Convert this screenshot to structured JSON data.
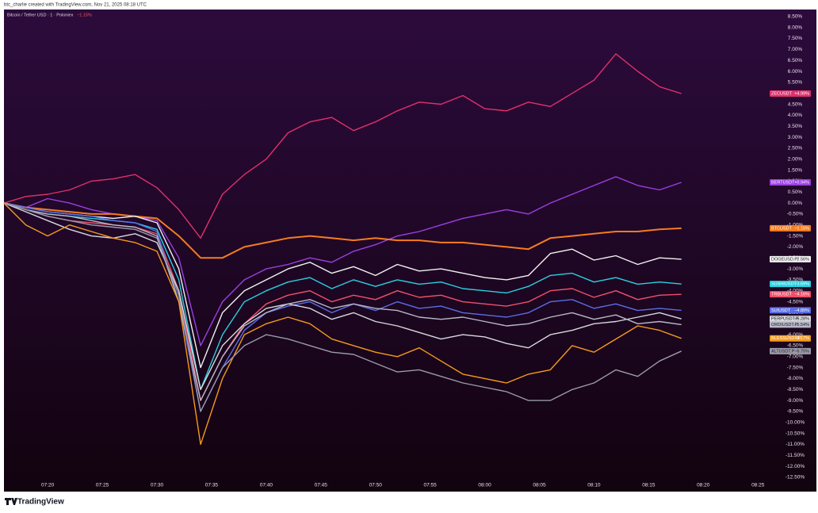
{
  "chart_data": {
    "type": "line",
    "author": "btc_charlie created with TradingView.com, Nov 21, 2025 08:18 UTC",
    "title": "Bitcoin / Tether USD · 1 · Poloniex",
    "title_change": "−1.15%",
    "brand": "TradingView",
    "x": [
      "07:16",
      "07:18",
      "07:20",
      "07:22",
      "07:24",
      "07:26",
      "07:28",
      "07:30",
      "07:32",
      "07:34",
      "07:36",
      "07:38",
      "07:40",
      "07:42",
      "07:44",
      "07:46",
      "07:48",
      "07:50",
      "07:52",
      "07:54",
      "07:56",
      "07:58",
      "08:00",
      "08:02",
      "08:04",
      "08:06",
      "08:08",
      "08:10",
      "08:12",
      "08:14",
      "08:16",
      "08:18"
    ],
    "xlim": [
      "07:16",
      "08:26"
    ],
    "xticks": [
      "07:20",
      "07:25",
      "07:30",
      "07:35",
      "07:40",
      "07:45",
      "07:50",
      "07:55",
      "08:00",
      "08:05",
      "08:10",
      "08:15",
      "08:20",
      "08:25"
    ],
    "ylim": [
      -13.08,
      8.82
    ],
    "yticks": [
      {
        "value": 8.5,
        "label": "8.50%"
      },
      {
        "value": 8,
        "label": "8.00%"
      },
      {
        "value": 7.5,
        "label": "7.50%"
      },
      {
        "value": 7,
        "label": "7.00%"
      },
      {
        "value": 6.5,
        "label": "6.50%"
      },
      {
        "value": 6,
        "label": "6.00%"
      },
      {
        "value": 5.5,
        "label": "5.50%"
      },
      {
        "value": 5,
        "label": "5.00%"
      },
      {
        "value": 4.5,
        "label": "4.50%"
      },
      {
        "value": 4,
        "label": "4.00%"
      },
      {
        "value": 3.5,
        "label": "3.50%"
      },
      {
        "value": 3,
        "label": "3.00%"
      },
      {
        "value": 2.5,
        "label": "2.50%"
      },
      {
        "value": 2,
        "label": "2.00%"
      },
      {
        "value": 1.5,
        "label": "1.50%"
      },
      {
        "value": 1,
        "label": "1.00%"
      },
      {
        "value": 0.5,
        "label": "0.50%"
      },
      {
        "value": 0,
        "label": "0.00%"
      },
      {
        "value": -0.5,
        "label": "-0.50%"
      },
      {
        "value": -1,
        "label": "-1.00%"
      },
      {
        "value": -1.5,
        "label": "-1.50%"
      },
      {
        "value": -2,
        "label": "-2.00%"
      },
      {
        "value": -2.5,
        "label": "-2.50%"
      },
      {
        "value": -3,
        "label": "-3.00%"
      },
      {
        "value": -3.5,
        "label": "-3.50%"
      },
      {
        "value": -4,
        "label": "-4.00%"
      },
      {
        "value": -4.5,
        "label": "-4.50%"
      },
      {
        "value": -5,
        "label": "-5.00%"
      },
      {
        "value": -5.5,
        "label": "-5.50%"
      },
      {
        "value": -6,
        "label": "-6.00%"
      },
      {
        "value": -6.5,
        "label": "-6.50%"
      },
      {
        "value": -7,
        "label": "-7.00%"
      },
      {
        "value": -7.5,
        "label": "-7.50%"
      },
      {
        "value": -8,
        "label": "-8.00%"
      },
      {
        "value": -8.5,
        "label": "-8.50%"
      },
      {
        "value": -9,
        "label": "-9.00%"
      },
      {
        "value": -9.5,
        "label": "-9.50%"
      },
      {
        "value": -10,
        "label": "-10.00%"
      },
      {
        "value": -10.5,
        "label": "-10.50%"
      },
      {
        "value": -11,
        "label": "-11.00%"
      },
      {
        "value": -11.5,
        "label": "-11.50%"
      },
      {
        "value": -12,
        "label": "-12.00%"
      },
      {
        "value": -12.5,
        "label": "-12.50%"
      }
    ],
    "grid": false,
    "series": [
      {
        "name": "ZECUSDT",
        "color": "#e0306a",
        "label": "+4.99%",
        "values": [
          0,
          0.3,
          0.4,
          0.6,
          1.0,
          1.1,
          1.3,
          0.7,
          -0.3,
          -1.6,
          0.4,
          1.3,
          2.0,
          3.2,
          3.7,
          3.9,
          3.3,
          3.7,
          4.2,
          4.6,
          4.5,
          4.9,
          4.3,
          4.2,
          4.6,
          4.4,
          5.0,
          5.6,
          6.8,
          6.0,
          5.3,
          4.99
        ]
      },
      {
        "name": "BERTUSDT",
        "color": "#9b3fe0",
        "label": "+0.94%",
        "values": [
          0,
          -0.2,
          0.2,
          0,
          -0.3,
          -0.5,
          -0.6,
          -0.8,
          -2.5,
          -6.5,
          -4.5,
          -3.5,
          -3.0,
          -2.8,
          -2.5,
          -2.7,
          -2.2,
          -1.9,
          -1.5,
          -1.3,
          -1.0,
          -0.7,
          -0.5,
          -0.3,
          -0.5,
          0,
          0.4,
          0.8,
          1.2,
          0.8,
          0.6,
          0.94
        ]
      },
      {
        "name": "BTCUSDT",
        "color": "#f57c1f",
        "label": "−1.15%",
        "values": [
          0,
          -0.2,
          -0.3,
          -0.4,
          -0.5,
          -0.5,
          -0.6,
          -0.7,
          -1.5,
          -2.5,
          -2.5,
          -2.0,
          -1.8,
          -1.6,
          -1.5,
          -1.6,
          -1.7,
          -1.6,
          -1.7,
          -1.7,
          -1.8,
          -1.8,
          -1.9,
          -2.0,
          -2.1,
          -1.6,
          -1.5,
          -1.4,
          -1.3,
          -1.3,
          -1.2,
          -1.15
        ]
      },
      {
        "name": "DOGEUSD.P",
        "color": "#f2f2f2",
        "label": "−2.56%",
        "values": [
          0,
          -0.2,
          -0.4,
          -0.5,
          -0.6,
          -0.7,
          -0.6,
          -0.9,
          -3.0,
          -7.5,
          -5.0,
          -4.0,
          -3.5,
          -3.0,
          -2.7,
          -3.2,
          -2.9,
          -3.3,
          -2.8,
          -3.1,
          -3.0,
          -3.2,
          -3.4,
          -3.5,
          -3.3,
          -2.3,
          -2.1,
          -2.6,
          -2.4,
          -2.8,
          -2.5,
          -2.56
        ]
      },
      {
        "name": "SUSHIUSDT",
        "color": "#2ad0e0",
        "label": "−3.69%",
        "values": [
          0,
          -0.3,
          -0.5,
          -0.6,
          -0.7,
          -0.8,
          -0.9,
          -1.2,
          -3.5,
          -8.5,
          -6.0,
          -4.5,
          -4.0,
          -3.6,
          -3.4,
          -3.9,
          -3.5,
          -3.8,
          -3.5,
          -3.7,
          -3.6,
          -3.9,
          -4.0,
          -4.1,
          -3.8,
          -3.3,
          -3.2,
          -3.6,
          -3.4,
          -3.7,
          -3.6,
          -3.69
        ]
      },
      {
        "name": "TRBUSDT",
        "color": "#f0506a",
        "label": "−4.16%",
        "values": [
          0,
          -0.3,
          -0.6,
          -0.8,
          -0.9,
          -1.0,
          -1.1,
          -1.4,
          -4.0,
          -9.0,
          -7.0,
          -5.5,
          -4.6,
          -4.2,
          -4.0,
          -4.5,
          -4.2,
          -4.4,
          -4.0,
          -4.3,
          -4.2,
          -4.5,
          -4.6,
          -4.7,
          -4.5,
          -4.0,
          -3.9,
          -4.3,
          -4.0,
          -4.4,
          -4.2,
          -4.16
        ]
      },
      {
        "name": "SUIUSDT",
        "color": "#5a6ee8",
        "label": "−4.89%",
        "values": [
          0,
          -0.2,
          -0.4,
          -0.5,
          -0.6,
          -0.8,
          -0.9,
          -1.3,
          -4.5,
          -9.5,
          -7.5,
          -5.8,
          -5.0,
          -4.7,
          -4.5,
          -5.0,
          -4.6,
          -4.9,
          -4.5,
          -4.8,
          -4.7,
          -5.0,
          -5.1,
          -5.2,
          -5.0,
          -4.5,
          -4.4,
          -4.8,
          -4.6,
          -4.9,
          -4.8,
          -4.89
        ]
      },
      {
        "name": "PERPUSDT.P",
        "color": "#d8d8e0",
        "label": "−5.28%",
        "values": [
          0,
          -0.4,
          -0.8,
          -1.2,
          -1.5,
          -1.6,
          -1.4,
          -1.8,
          -4.0,
          -8.5,
          -6.5,
          -5.5,
          -4.8,
          -4.6,
          -4.8,
          -5.3,
          -5.0,
          -5.4,
          -5.6,
          -5.9,
          -6.2,
          -6.0,
          -6.1,
          -6.4,
          -6.6,
          -6.0,
          -5.8,
          -5.5,
          -5.4,
          -5.2,
          -5.0,
          -5.28
        ]
      },
      {
        "name": "ORDIUSDT.P",
        "color": "#b8b8c8",
        "label": "−5.54%",
        "values": [
          0,
          -0.3,
          -0.5,
          -0.6,
          -0.8,
          -1.0,
          -1.1,
          -1.5,
          -4.5,
          -9.0,
          -7.0,
          -5.6,
          -5.0,
          -4.6,
          -4.4,
          -4.8,
          -4.6,
          -4.8,
          -4.9,
          -5.2,
          -5.3,
          -5.2,
          -5.4,
          -5.6,
          -5.5,
          -5.2,
          -5.0,
          -5.3,
          -5.1,
          -5.5,
          -5.4,
          -5.54
        ]
      },
      {
        "name": "BLESSUSDT.P",
        "color": "#f59a1c",
        "label": "−6.17%",
        "values": [
          0,
          -1.0,
          -1.5,
          -1.0,
          -1.3,
          -1.6,
          -1.8,
          -2.2,
          -4.5,
          -11.0,
          -8.0,
          -6.0,
          -5.5,
          -5.2,
          -5.5,
          -6.2,
          -6.5,
          -6.8,
          -7.0,
          -6.6,
          -7.2,
          -7.8,
          -8.0,
          -8.2,
          -7.8,
          -7.6,
          -6.5,
          -6.8,
          -6.2,
          -5.6,
          -5.8,
          -6.17
        ]
      },
      {
        "name": "ALTUSDT.P",
        "color": "#9a9aa8",
        "label": "−6.75%",
        "values": [
          0,
          -0.3,
          -0.6,
          -0.8,
          -1.0,
          -1.1,
          -1.2,
          -1.6,
          -4.2,
          -9.5,
          -7.5,
          -6.5,
          -6.0,
          -6.2,
          -6.5,
          -6.8,
          -6.9,
          -7.3,
          -7.7,
          -7.6,
          -7.9,
          -8.2,
          -8.4,
          -8.6,
          -9.0,
          -9.0,
          -8.5,
          -8.2,
          -7.6,
          -7.9,
          -7.2,
          -6.75
        ]
      }
    ]
  }
}
